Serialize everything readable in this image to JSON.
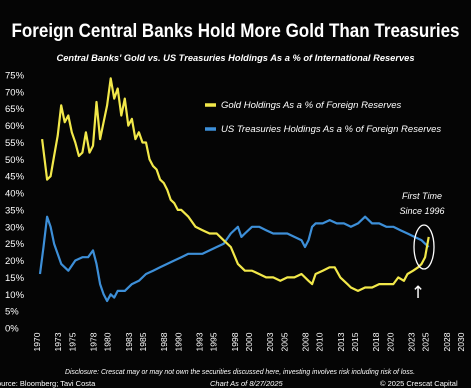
{
  "chart_data": {
    "type": "line",
    "title": "Foreign Central Banks Hold More Gold Than Treasuries",
    "subtitle": "Central Banks' Gold vs. US Treasuries Holdings As a % of International Reserves",
    "xlim": [
      1970,
      2030
    ],
    "ylim": [
      0,
      75
    ],
    "yticks": [
      0,
      5,
      10,
      15,
      20,
      25,
      30,
      35,
      40,
      45,
      50,
      55,
      60,
      65,
      70,
      75
    ],
    "ytick_labels": [
      "0%",
      "5%",
      "10%",
      "15%",
      "20%",
      "25%",
      "30%",
      "35%",
      "40%",
      "45%",
      "50%",
      "55%",
      "60%",
      "65%",
      "70%",
      "75%"
    ],
    "xticks": [
      1970,
      1973,
      1975,
      1978,
      1980,
      1983,
      1985,
      1988,
      1990,
      1993,
      1995,
      1998,
      2000,
      2003,
      2005,
      2008,
      2010,
      2013,
      2015,
      2018,
      2020,
      2023,
      2025,
      2028,
      2030
    ],
    "xtick_labels": [
      "1970",
      "1973",
      "1975",
      "1978",
      "1980",
      "1983",
      "1985",
      "1988",
      "1990",
      "1993",
      "1995",
      "1998",
      "2000",
      "2003",
      "2005",
      "2008",
      "2010",
      "2013",
      "2015",
      "2018",
      "2020",
      "2023",
      "2025",
      "2028",
      "2030"
    ],
    "grid": false,
    "legend_position": "upper-right",
    "background": "#050505",
    "series": [
      {
        "name": "Gold Holdings As a % of Foreign Reserves",
        "color": "#f2e84a",
        "x": [
          1970.3,
          1971.0,
          1971.5,
          1972.0,
          1972.5,
          1973.0,
          1973.5,
          1974.0,
          1974.5,
          1975.0,
          1975.5,
          1976.0,
          1976.5,
          1977.0,
          1977.5,
          1978.0,
          1978.5,
          1979.0,
          1979.5,
          1980.0,
          1980.5,
          1981.0,
          1981.5,
          1982.0,
          1982.5,
          1983.0,
          1983.5,
          1984.0,
          1984.5,
          1985.0,
          1985.5,
          1986.0,
          1986.5,
          1987.0,
          1987.5,
          1988.0,
          1988.5,
          1989.0,
          1989.5,
          1990.0,
          1991.0,
          1992.0,
          1993.0,
          1994.0,
          1995.0,
          1996.0,
          1997.0,
          1998.0,
          1999.0,
          2000.0,
          2001.0,
          2002.0,
          2003.0,
          2004.0,
          2005.0,
          2006.0,
          2007.0,
          2008.0,
          2008.5,
          2009.0,
          2010.0,
          2011.0,
          2011.7,
          2012.5,
          2013.5,
          2014.0,
          2015.0,
          2016.0,
          2017.0,
          2018.0,
          2019.0,
          2020.0,
          2020.7,
          2021.5,
          2022.0,
          2022.8,
          2023.5,
          2024.0,
          2024.5,
          2025.0
        ],
        "values": [
          56,
          44,
          45,
          51,
          57,
          66,
          61,
          63,
          58,
          55,
          51,
          52,
          58,
          52,
          54,
          67,
          56,
          61,
          66,
          74,
          68,
          71,
          63,
          68,
          60,
          62,
          56,
          58,
          55,
          55,
          50,
          48,
          47,
          44,
          43,
          41,
          38,
          37,
          35,
          35,
          33,
          30,
          29,
          28,
          28,
          26,
          24,
          19,
          17,
          17,
          16,
          15,
          15,
          14,
          15,
          15,
          16,
          14,
          13,
          16,
          17,
          18,
          18,
          15,
          13,
          12,
          11,
          12,
          12,
          13,
          13,
          13,
          15,
          14,
          16,
          17,
          18,
          19,
          21,
          27
        ]
      },
      {
        "name": "US Treasuries Holdings As a % of Foreign Reserves",
        "color": "#3d8fd8",
        "x": [
          1970.0,
          1970.5,
          1971.0,
          1971.5,
          1972.0,
          1973.0,
          1974.0,
          1975.0,
          1976.0,
          1976.8,
          1977.5,
          1978.0,
          1978.5,
          1979.0,
          1979.5,
          1980.0,
          1980.5,
          1981.0,
          1982.0,
          1983.0,
          1984.0,
          1985.0,
          1986.0,
          1987.0,
          1988.0,
          1989.0,
          1990.0,
          1991.0,
          1992.0,
          1993.0,
          1994.0,
          1995.0,
          1996.0,
          1997.0,
          1998.0,
          1998.5,
          1999.0,
          2000.0,
          2001.0,
          2002.0,
          2003.0,
          2004.0,
          2005.0,
          2006.0,
          2007.0,
          2007.5,
          2008.0,
          2008.5,
          2009.0,
          2009.5,
          2010.0,
          2011.0,
          2012.0,
          2013.0,
          2014.0,
          2015.0,
          2016.0,
          2017.0,
          2018.0,
          2019.0,
          2020.0,
          2021.0,
          2022.0,
          2023.0,
          2024.0,
          2024.5,
          2025.0
        ],
        "values": [
          16,
          24,
          33,
          30,
          25,
          19,
          17,
          20,
          21,
          21,
          23,
          19,
          13,
          10,
          8,
          10,
          9,
          11,
          11,
          13,
          14,
          16,
          17,
          18,
          19,
          20,
          21,
          22,
          22,
          22,
          23,
          24,
          25,
          28,
          30,
          27,
          28,
          30,
          30,
          29,
          28,
          28,
          28,
          27,
          26,
          24,
          26,
          30,
          31,
          31,
          31,
          32,
          31,
          31,
          30,
          31,
          33,
          31,
          31,
          30,
          30,
          29,
          28,
          27,
          26,
          25,
          24
        ]
      }
    ],
    "annotation": {
      "line1": "First Time",
      "line2": "Since 1996",
      "arrow": "↑"
    },
    "disclaimer": "Disclosure: Crescat may or may not own the securities discussed here, investing involves risk including risk of loss.",
    "source": "Source: Bloomberg; Tavi Costa",
    "chart_as_of": "Chart As of 8/27/2025",
    "copyright": "© 2025 Crescat Capital"
  }
}
